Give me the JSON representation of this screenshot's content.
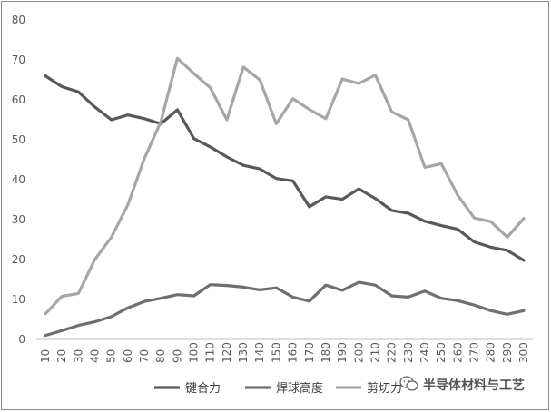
{
  "chart_data": {
    "type": "line",
    "x": [
      10,
      20,
      30,
      40,
      50,
      60,
      70,
      80,
      90,
      100,
      110,
      120,
      130,
      140,
      150,
      160,
      170,
      180,
      190,
      200,
      210,
      220,
      230,
      240,
      250,
      260,
      270,
      280,
      290,
      300
    ],
    "ylim": [
      0,
      80
    ],
    "yticks": [
      0,
      10,
      20,
      30,
      40,
      50,
      60,
      70,
      80
    ],
    "grid": false,
    "legend_position": "bottom",
    "series": [
      {
        "name": "键合力",
        "color": "#595959",
        "values": [
          66,
          63.3,
          62,
          58.2,
          55,
          56.2,
          55.3,
          54,
          57.5,
          50.3,
          48.2,
          45.7,
          43.6,
          42.7,
          40.3,
          39.7,
          33.2,
          35.7,
          35.1,
          37.7,
          35.3,
          32.3,
          31.6,
          29.6,
          28.5,
          27.6,
          24.4,
          23.1,
          22.3,
          19.8
        ]
      },
      {
        "name": "焊球高度",
        "color": "#6f6f6f",
        "values": [
          1,
          2.2,
          3.5,
          4.4,
          5.7,
          7.9,
          9.5,
          10.3,
          11.2,
          10.9,
          13.7,
          13.5,
          13.1,
          12.4,
          12.9,
          10.6,
          9.6,
          13.6,
          12.3,
          14.3,
          13.6,
          10.9,
          10.6,
          12.1,
          10.3,
          9.7,
          8.6,
          7.2,
          6.3,
          7.2
        ]
      },
      {
        "name": "剪切力",
        "color": "#a6a6a6",
        "values": [
          6.4,
          10.8,
          11.5,
          20,
          25.6,
          33.7,
          45.3,
          54.5,
          70.4,
          66.6,
          63,
          55,
          68.2,
          65,
          54,
          60.3,
          57.6,
          55.3,
          65.2,
          64.1,
          66.2,
          57,
          55,
          43.1,
          44,
          36.1,
          30.4,
          29.5,
          25.6,
          30.3
        ]
      }
    ]
  },
  "watermark": {
    "icon": "wechat-icon",
    "text": "半导体材料与工艺"
  }
}
